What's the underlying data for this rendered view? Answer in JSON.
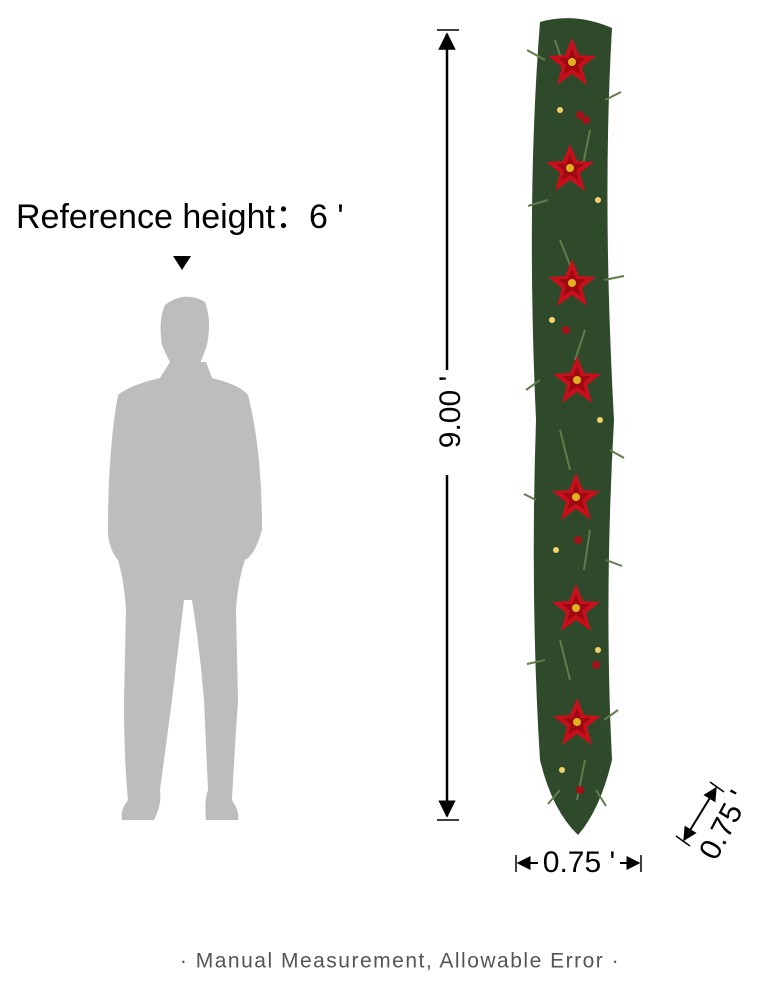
{
  "reference_label": "Reference height：6 '",
  "dimensions": {
    "length": "9.00 '",
    "width": "0.75 '",
    "depth": "0.75 '"
  },
  "footer": "· Manual Measurement,  Allowable Error ·"
}
